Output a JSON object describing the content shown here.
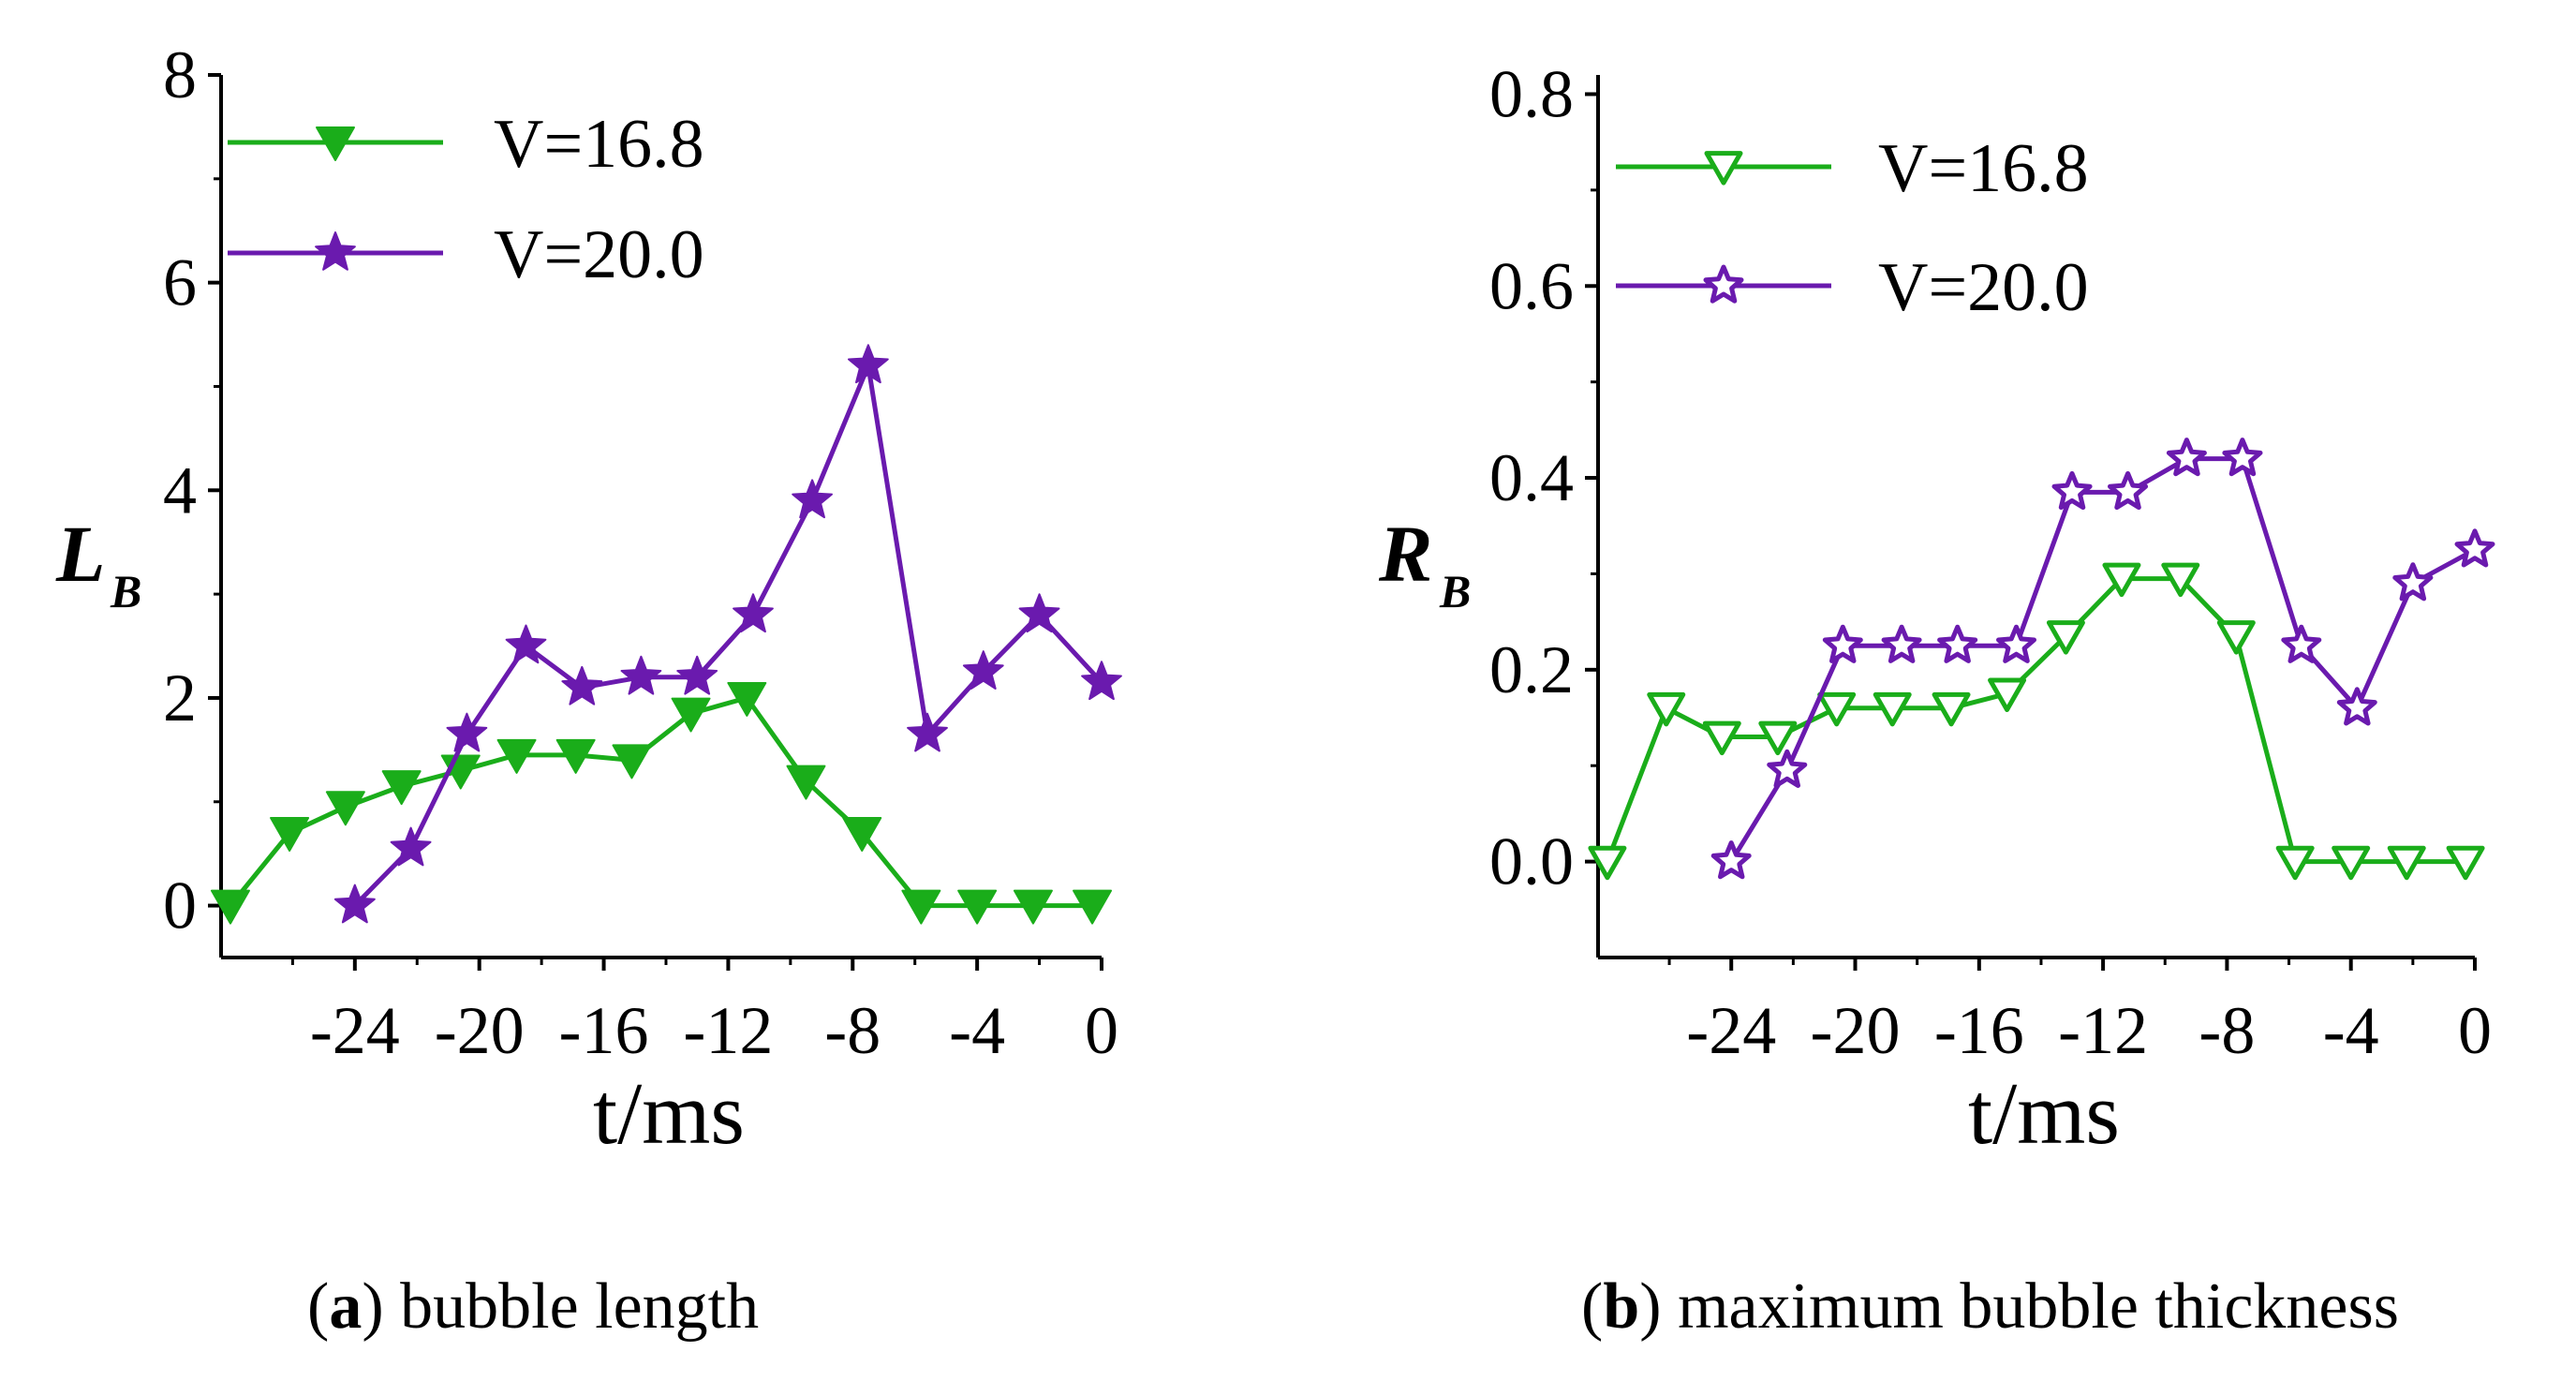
{
  "colors": {
    "series_green": "#1aad1a",
    "series_purple": "#6a1aae",
    "axis": "#000000"
  },
  "chart_data": [
    {
      "id": "a",
      "type": "line",
      "xlabel": "t/ms",
      "ylabel": "L",
      "ylabel_sub": "B",
      "xlim": [
        -28.3,
        0
      ],
      "ylim": [
        -0.5,
        8
      ],
      "xticks": [
        -24,
        -20,
        -16,
        -12,
        -8,
        -4,
        0
      ],
      "xtick_labels": [
        "-24",
        "-20",
        "-16",
        "-12",
        "-8",
        "-4",
        "0"
      ],
      "yticks": [
        0,
        2,
        4,
        6,
        8
      ],
      "ytick_labels": [
        "0",
        "2",
        "4",
        "6",
        "8"
      ],
      "legend_location": "top-left",
      "series": [
        {
          "name": "V=16.8",
          "marker": "triangle-down-filled",
          "color": "#1aad1a",
          "x": [
            -28.0,
            -26.1,
            -24.3,
            -22.5,
            -20.6,
            -18.8,
            -16.9,
            -15.1,
            -13.2,
            -11.4,
            -9.5,
            -7.7,
            -5.8,
            -4.0,
            -2.2,
            -0.3
          ],
          "y": [
            0.0,
            0.7,
            0.95,
            1.15,
            1.3,
            1.45,
            1.45,
            1.4,
            1.85,
            2.0,
            1.2,
            0.7,
            0.0,
            0.0,
            0.0,
            0.0
          ]
        },
        {
          "name": "V=20.0",
          "marker": "star-filled",
          "color": "#6a1aae",
          "x": [
            -24.0,
            -22.2,
            -20.4,
            -18.5,
            -16.7,
            -14.8,
            -13.0,
            -11.2,
            -9.3,
            -7.5,
            -5.6,
            -3.8,
            -2.0,
            0.0
          ],
          "y": [
            0.0,
            0.55,
            1.65,
            2.5,
            2.1,
            2.2,
            2.2,
            2.8,
            3.9,
            5.2,
            1.65,
            2.25,
            2.8,
            2.15
          ]
        }
      ]
    },
    {
      "id": "b",
      "type": "line",
      "xlabel": "t/ms",
      "ylabel": "R",
      "ylabel_sub": "B",
      "xlim": [
        -28.3,
        0
      ],
      "ylim": [
        -0.1,
        0.82
      ],
      "xticks": [
        -24,
        -20,
        -16,
        -12,
        -8,
        -4,
        0
      ],
      "xtick_labels": [
        "-24",
        "-20",
        "-16",
        "-12",
        "-8",
        "-4",
        "0"
      ],
      "yticks": [
        0.0,
        0.2,
        0.4,
        0.6,
        0.8
      ],
      "ytick_labels": [
        "0.0",
        "0.2",
        "0.4",
        "0.6",
        "0.8"
      ],
      "legend_location": "top-left",
      "series": [
        {
          "name": "V=16.8",
          "marker": "triangle-down-open",
          "color": "#1aad1a",
          "x": [
            -28.0,
            -26.1,
            -24.3,
            -22.5,
            -20.6,
            -18.8,
            -16.9,
            -15.1,
            -13.2,
            -11.4,
            -9.5,
            -7.7,
            -5.8,
            -4.0,
            -2.2,
            -0.3
          ],
          "y": [
            0.0,
            0.16,
            0.13,
            0.13,
            0.16,
            0.16,
            0.16,
            0.175,
            0.235,
            0.295,
            0.295,
            0.235,
            0.0,
            0.0,
            0.0,
            0.0
          ]
        },
        {
          "name": "V=20.0",
          "marker": "star-open",
          "color": "#6a1aae",
          "x": [
            -24.0,
            -22.2,
            -20.4,
            -18.5,
            -16.7,
            -14.8,
            -13.0,
            -11.2,
            -9.3,
            -7.5,
            -5.6,
            -3.8,
            -2.0,
            0.0
          ],
          "y": [
            0.0,
            0.095,
            0.225,
            0.225,
            0.225,
            0.225,
            0.385,
            0.385,
            0.42,
            0.42,
            0.225,
            0.16,
            0.29,
            0.325
          ]
        }
      ]
    }
  ],
  "captions": [
    {
      "letter": "a",
      "text": " bubble length"
    },
    {
      "letter": "b",
      "text": " maximum bubble thickness"
    }
  ]
}
